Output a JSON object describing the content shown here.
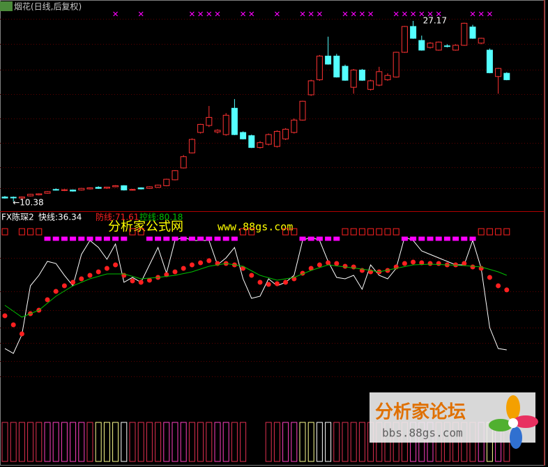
{
  "chart_data": [
    {
      "type": "candlestick",
      "title": "烟花(日线,后复权)",
      "open": [
        10.8,
        10.78,
        10.7,
        10.9,
        11.0,
        11.15,
        11.5,
        11.4,
        11.45,
        11.45,
        11.55,
        11.7,
        11.62,
        11.75,
        11.85,
        11.45,
        11.65,
        11.6,
        11.7,
        11.85,
        12.4,
        13.5,
        14.9,
        16.8,
        17.45,
        16.85,
        16.6,
        19.05,
        16.8,
        16.5,
        15.4,
        15.7,
        15.5,
        16.2,
        16.8,
        17.95,
        20.3,
        21.7,
        23.9,
        23.9,
        22.95,
        21.0,
        22.6,
        20.8,
        21.2,
        21.7,
        21.95,
        24.25,
        26.65,
        25.35,
        24.7,
        24.45,
        24.85,
        24.45,
        24.9,
        26.6,
        25.1,
        24.45,
        22.0,
        22.3
      ],
      "high": [
        10.9,
        10.85,
        10.85,
        11.1,
        11.15,
        11.35,
        11.6,
        11.55,
        11.5,
        11.65,
        11.7,
        11.8,
        11.75,
        11.9,
        11.9,
        11.55,
        11.7,
        11.8,
        11.95,
        12.5,
        13.3,
        14.7,
        16.25,
        17.6,
        19.26,
        17.1,
        18.6,
        19.9,
        16.9,
        16.6,
        16.0,
        16.7,
        17.0,
        17.2,
        18.1,
        19.75,
        21.7,
        24.0,
        25.7,
        24.1,
        23.1,
        22.7,
        22.7,
        21.7,
        22.9,
        22.3,
        24.3,
        26.7,
        27.17,
        25.8,
        25.2,
        25.25,
        25.0,
        25.0,
        27.0,
        26.8,
        25.6,
        24.6,
        22.8,
        22.4
      ],
      "low": [
        10.65,
        10.38,
        10.6,
        10.85,
        10.95,
        11.1,
        11.4,
        11.35,
        11.3,
        11.4,
        11.5,
        11.55,
        11.55,
        11.7,
        11.4,
        11.4,
        11.5,
        11.55,
        11.65,
        11.8,
        12.35,
        13.45,
        14.85,
        16.7,
        17.3,
        16.7,
        16.5,
        16.55,
        16.15,
        15.35,
        15.3,
        15.6,
        15.4,
        16.1,
        16.7,
        17.9,
        20.2,
        21.6,
        23.1,
        21.9,
        21.6,
        20.4,
        21.6,
        20.7,
        21.1,
        21.6,
        21.9,
        24.2,
        25.5,
        24.4,
        24.6,
        24.4,
        24.7,
        24.4,
        24.85,
        25.5,
        25.0,
        22.3,
        20.4,
        21.65
      ],
      "close": [
        10.7,
        10.72,
        10.8,
        11.05,
        11.1,
        11.3,
        11.45,
        11.48,
        11.35,
        11.6,
        11.65,
        11.6,
        11.72,
        11.85,
        11.45,
        11.5,
        11.55,
        11.75,
        11.9,
        12.45,
        13.25,
        14.55,
        16.15,
        17.55,
        18.2,
        17.0,
        18.4,
        16.6,
        16.2,
        15.4,
        15.85,
        16.6,
        16.9,
        17.1,
        17.95,
        19.7,
        21.6,
        23.9,
        23.15,
        21.95,
        21.65,
        22.6,
        21.65,
        21.6,
        22.45,
        22.1,
        24.25,
        26.65,
        25.55,
        24.45,
        25.1,
        25.2,
        24.8,
        24.9,
        26.95,
        25.55,
        25.55,
        22.35,
        22.75,
        21.7
      ],
      "up_color": "#ff3232",
      "down_color": "#54ffff",
      "ylim": [
        9.48,
        29.11
      ],
      "annotations": [
        {
          "text": "27.17",
          "value": 27.17,
          "index": 48
        },
        {
          "text": "←10.38",
          "value": 10.38,
          "index": 1
        }
      ],
      "top_signals": [
        13,
        16,
        22,
        23,
        24,
        25,
        28,
        29,
        32,
        35,
        36,
        37,
        40,
        41,
        42,
        43,
        46,
        47,
        48,
        49,
        50,
        51,
        55,
        56,
        57
      ],
      "signal_color": "#ff00ff"
    },
    {
      "type": "line",
      "title": "FX陈琛2",
      "series": [
        {
          "name": "快线:36.34",
          "color": "#ffffff",
          "style": "line",
          "values": [
            37.15,
            34.28,
            45.34,
            74.03,
            80.18,
            88.38,
            87.15,
            80.18,
            74.03,
            92.48,
            100.67,
            96.57,
            89.61,
            98.62,
            76.08,
            78.95,
            76.08,
            86.33,
            96.57,
            81.41,
            100.67,
            102.72,
            100.67,
            100.67,
            100.67,
            86.33,
            90.43,
            96.57,
            78.13,
            66.66,
            67.89,
            78.13,
            74.03,
            76.08,
            80.18,
            100.67,
            102.72,
            100.67,
            88.38,
            78.95,
            78.13,
            80.18,
            71.98,
            86.33,
            80.18,
            78.13,
            84.28,
            102.72,
            100.67,
            94.52,
            92.48,
            90.43,
            88.38,
            86.33,
            86.33,
            100.67,
            84.28,
            49.44,
            37.15,
            36.34
          ]
        },
        {
          "name": "防线:71.61",
          "color": "#ff2020",
          "style": "dots",
          "values": [
            56.41,
            51.08,
            45.75,
            57.64,
            59.69,
            65.84,
            70.75,
            74.03,
            76.08,
            78.13,
            80.18,
            82.23,
            84.28,
            86.33,
            80.18,
            76.9,
            76.08,
            77.31,
            78.95,
            80.59,
            82.23,
            84.28,
            86.33,
            87.56,
            88.79,
            87.15,
            87.15,
            86.33,
            84.28,
            80.18,
            76.08,
            74.85,
            75.26,
            76.08,
            78.13,
            81.41,
            84.28,
            86.33,
            87.56,
            87.15,
            85.51,
            85.1,
            83.05,
            82.23,
            82.23,
            83.05,
            85.1,
            87.15,
            87.97,
            87.56,
            87.15,
            87.15,
            86.33,
            86.33,
            87.15,
            85.1,
            84.28,
            78.95,
            74.03,
            71.61
          ]
        },
        {
          "name": "控线:80.18",
          "color": "#00c000",
          "style": "line",
          "values": [
            62.56,
            59.08,
            55.59,
            57.64,
            59.69,
            63.79,
            67.89,
            70.96,
            74.03,
            76.08,
            78.13,
            79.57,
            81.0,
            81.0,
            81.0,
            79.57,
            78.13,
            78.54,
            78.95,
            79.57,
            80.18,
            81.21,
            82.23,
            83.87,
            85.51,
            86.33,
            87.15,
            86.33,
            85.51,
            82.85,
            80.18,
            78.75,
            77.31,
            78.13,
            78.95,
            81.0,
            83.05,
            84.69,
            86.33,
            85.72,
            85.1,
            84.49,
            83.87,
            83.05,
            82.23,
            83.26,
            84.28,
            85.31,
            86.33,
            86.54,
            86.74,
            86.54,
            86.33,
            86.13,
            85.92,
            85.51,
            85.1,
            83.67,
            82.23,
            80.18
          ]
        }
      ],
      "ylim": [
        18.71,
        117.07
      ],
      "square_colors": [
        "#ff2020",
        null,
        "#ff2020",
        "#ff2020",
        "#ff2020",
        "#ff00ff",
        "#ff00ff",
        "#ff00ff",
        "#ff00ff",
        "#ff00ff",
        "#ff00ff",
        "#ff00ff",
        "#ff00ff",
        "#ff00ff",
        "#ff00ff",
        "#ff2020",
        "#ff2020",
        "#ff00ff",
        "#ff00ff",
        "#ff00ff",
        "#ff00ff",
        "#ff00ff",
        "#ff00ff",
        "#ff00ff",
        "#ff00ff",
        "#ff00ff",
        "#ff00ff",
        "#ff00ff",
        "#ff2020",
        "#ff2020",
        null,
        null,
        null,
        "#ff2020",
        "#ff2020",
        "#ff00ff",
        "#ff00ff",
        "#ff00ff",
        "#ff00ff",
        "#ff00ff",
        "#ff2020",
        "#ff2020",
        "#ff2020",
        "#ff2020",
        "#ff2020",
        "#ff2020",
        "#ff2020",
        "#ff00ff",
        "#ff00ff",
        "#ff00ff",
        "#ff00ff",
        "#ff00ff",
        "#ff00ff",
        "#ff00ff",
        "#ff00ff",
        "#ff00ff",
        "#ff2020",
        "#ff2020",
        "#ff2020",
        "#ff2020"
      ],
      "bar_colors": [
        "#e03050",
        "#e03050",
        "#e03050",
        "#e03050",
        "#e03050",
        "#ff40c0",
        "#ff40c0",
        "#ff40c0",
        "#ff40c0",
        "#ff40c0",
        "#e03050",
        "#ffff90",
        "#ffff90",
        "#ffff90",
        "#ffffff",
        "#e03050",
        "#e03050",
        "#e03050",
        "#e03050",
        "#ff40c0",
        "#ff40c0",
        "#ff40c0",
        "#e03050",
        "#e03050",
        "#e03050",
        "#ff40c0",
        "#ff40c0",
        "#e03050",
        "#e03050",
        null,
        null,
        "#e03050",
        "#e03050",
        "#ff40c0",
        "#ff40c0",
        "#ffff90",
        "#ffff90",
        "#ffffff",
        "#ffffff",
        "#e03050",
        "#e03050",
        "#e03050",
        "#e03050",
        "#e03050",
        "#e03050",
        "#e03050",
        "#e03050",
        "#e03050",
        "#ff40c0",
        "#ff40c0",
        "#ff40c0",
        "#e03050",
        "#e03050",
        "#e03050",
        "#e03050",
        "#e03050",
        "#ff40c0",
        "#ffff90",
        "#ff40c0",
        "#e03050"
      ]
    }
  ],
  "watermarks": {
    "site_name": "分析家公式网",
    "site_url": "www.88gs.com",
    "forum_name": "分析家论坛",
    "forum_url": "bbs.88gs.com"
  }
}
